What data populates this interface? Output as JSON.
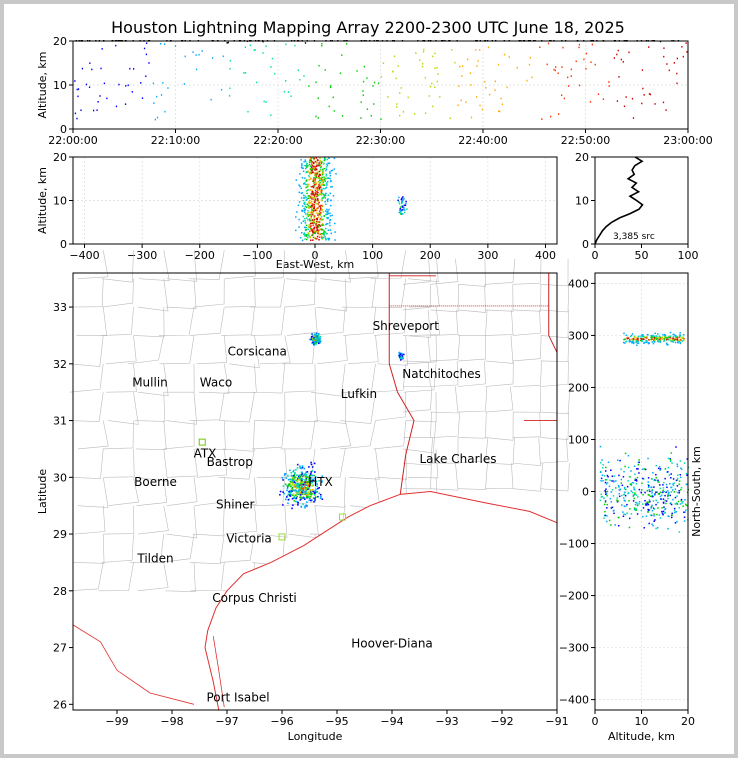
{
  "title": "Houston Lightning Mapping Array 2200-2300 UTC June 18, 2025",
  "colors": {
    "background": "#c8c8c8",
    "panel": "#ffffff",
    "coast": "#e03030",
    "state_border": "#d02020",
    "county": "#bbbbbb",
    "source_scale": [
      "#0000ff",
      "#00aaff",
      "#00ddaa",
      "#00cc00",
      "#aadd00",
      "#ffaa00",
      "#ff3300",
      "#cc0000"
    ]
  },
  "chart_data": [
    {
      "name": "time-altitude",
      "type": "scatter",
      "xlabel": "",
      "ylabel": "Altitude, km",
      "xlim": [
        "22:00:00",
        "23:00:00"
      ],
      "ylim": [
        0,
        20
      ],
      "xticks": [
        "22:00:00",
        "22:10:00",
        "22:20:00",
        "22:30:00",
        "22:40:00",
        "22:50:00",
        "23:00:00"
      ],
      "yticks": [
        "0",
        "10",
        "20"
      ],
      "grid": true
    },
    {
      "name": "east-west-altitude",
      "type": "scatter",
      "xlabel": "East-West, km",
      "ylabel": "Altitude, km",
      "xlim": [
        -420,
        420
      ],
      "ylim": [
        0,
        20
      ],
      "xticks": [
        "−400",
        "−300",
        "−200",
        "−100",
        "0",
        "100",
        "200",
        "300",
        "400"
      ],
      "yticks": [
        "0",
        "10",
        "20"
      ],
      "grid": true,
      "clusters": [
        {
          "x_center": 0,
          "x_spread": 40,
          "alt_min": 1,
          "alt_max": 20
        },
        {
          "x_center": 150,
          "x_spread": 10,
          "alt_min": 7,
          "alt_max": 11
        }
      ]
    },
    {
      "name": "altitude-histogram",
      "type": "line",
      "xlabel": "",
      "ylabel": "",
      "xlim": [
        0,
        100
      ],
      "ylim": [
        0,
        20
      ],
      "xticks": [
        "0",
        "50",
        "100"
      ],
      "yticks": [
        "0",
        "10",
        "20"
      ],
      "annotation": "3,385 src",
      "profile": [
        [
          0,
          0
        ],
        [
          2,
          1
        ],
        [
          5,
          2
        ],
        [
          8,
          3
        ],
        [
          12,
          4
        ],
        [
          18,
          5
        ],
        [
          28,
          6
        ],
        [
          38,
          7
        ],
        [
          45,
          8
        ],
        [
          52,
          9
        ],
        [
          45,
          10
        ],
        [
          40,
          11
        ],
        [
          44,
          12
        ],
        [
          40,
          13
        ],
        [
          43,
          14
        ],
        [
          38,
          15
        ],
        [
          42,
          16
        ],
        [
          39,
          17
        ],
        [
          44,
          18
        ],
        [
          50,
          19
        ],
        [
          46,
          20
        ]
      ]
    },
    {
      "name": "plan-view",
      "type": "scatter",
      "xlabel": "Longitude",
      "ylabel": "Latitude",
      "xlim": [
        -99.8,
        -91.0
      ],
      "ylim": [
        25.9,
        33.6
      ],
      "xticks": [
        "−99",
        "−98",
        "−97",
        "−96",
        "−95",
        "−94",
        "−93",
        "−92",
        "−91"
      ],
      "yticks": [
        "26",
        "27",
        "28",
        "29",
        "30",
        "31",
        "32",
        "33"
      ],
      "cities": [
        {
          "name": "Shreveport",
          "lon": -93.75,
          "lat": 32.6,
          "color": "#000000"
        },
        {
          "name": "Corsicana",
          "lon": -96.45,
          "lat": 32.15,
          "color": "#000000"
        },
        {
          "name": "Natchitoches",
          "lon": -93.1,
          "lat": 31.75,
          "color": "#000000"
        },
        {
          "name": "Mullin",
          "lon": -98.4,
          "lat": 31.6,
          "color": "#ee8844"
        },
        {
          "name": "Waco",
          "lon": -97.2,
          "lat": 31.6,
          "color": "#000000"
        },
        {
          "name": "Lufkin",
          "lon": -94.6,
          "lat": 31.4,
          "color": "#000000"
        },
        {
          "name": "ATX",
          "lon": -97.4,
          "lat": 30.35,
          "color": "#ee8844"
        },
        {
          "name": "Bastrop",
          "lon": -96.95,
          "lat": 30.2,
          "color": "#000000"
        },
        {
          "name": "Lake Charles",
          "lon": -92.8,
          "lat": 30.25,
          "color": "#000000"
        },
        {
          "name": "Boerne",
          "lon": -98.3,
          "lat": 29.85,
          "color": "#000000"
        },
        {
          "name": "HTX",
          "lon": -95.3,
          "lat": 29.85,
          "color": "#ee9922"
        },
        {
          "name": "Shiner",
          "lon": -96.85,
          "lat": 29.45,
          "color": "#000000"
        },
        {
          "name": "Victoria",
          "lon": -96.6,
          "lat": 28.85,
          "color": "#000000"
        },
        {
          "name": "Tilden",
          "lon": -98.3,
          "lat": 28.5,
          "color": "#000000"
        },
        {
          "name": "Corpus Christi",
          "lon": -96.5,
          "lat": 27.8,
          "color": "#000000"
        },
        {
          "name": "Hoover-Diana",
          "lon": -94.0,
          "lat": 27.0,
          "color": "#2222dd"
        },
        {
          "name": "Port Isabel",
          "lon": -96.8,
          "lat": 26.05,
          "color": "#000000"
        }
      ],
      "clusters": [
        {
          "lon": -95.65,
          "lat": 29.85,
          "r_lon": 0.45,
          "r_lat": 0.45
        },
        {
          "lon": -95.4,
          "lat": 32.45,
          "r_lon": 0.12,
          "r_lat": 0.12
        },
        {
          "lon": -93.85,
          "lat": 32.15,
          "r_lon": 0.06,
          "r_lat": 0.1
        }
      ]
    },
    {
      "name": "altitude-north-south",
      "type": "scatter",
      "xlabel": "Altitude, km",
      "ylabel": "North-South, km",
      "xlim": [
        0,
        20
      ],
      "ylim": [
        -420,
        420
      ],
      "xticks": [
        "0",
        "10",
        "20"
      ],
      "yticks": [
        "−400",
        "−300",
        "−200",
        "−100",
        "0",
        "100",
        "200",
        "300",
        "400"
      ],
      "clusters": [
        {
          "y_center": 295,
          "y_spread": 15,
          "alt_min": 6,
          "alt_max": 19
        },
        {
          "y_center": 0,
          "y_spread": 100,
          "alt_min": 1,
          "alt_max": 20
        }
      ]
    }
  ]
}
